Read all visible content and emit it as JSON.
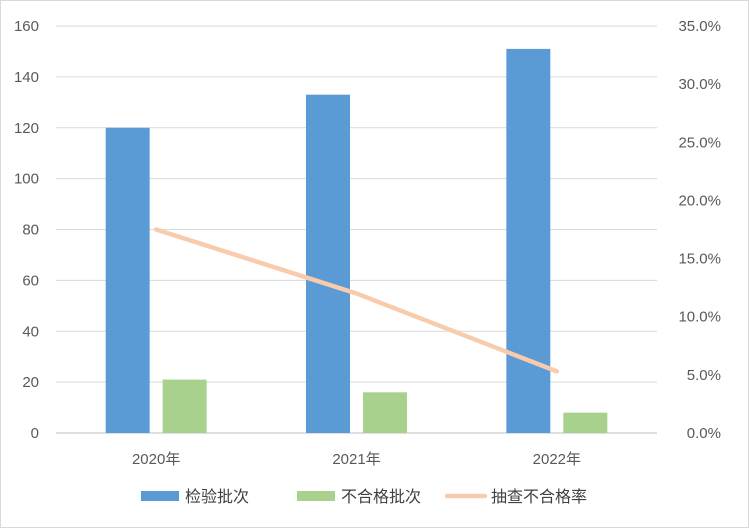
{
  "chart_data": {
    "type": "bar",
    "categories": [
      "2020年",
      "2021年",
      "2022年"
    ],
    "series": [
      {
        "name": "检验批次",
        "kind": "bar",
        "axis": "left",
        "color": "#5b9bd5",
        "values": [
          120,
          133,
          151
        ]
      },
      {
        "name": "不合格批次",
        "kind": "bar",
        "axis": "left",
        "color": "#a9d18e",
        "values": [
          21,
          16,
          8
        ]
      },
      {
        "name": "抽查不合格率",
        "kind": "line",
        "axis": "right",
        "color": "#f8cbad",
        "values": [
          0.175,
          0.12,
          0.053
        ]
      }
    ],
    "ylim": [
      0,
      160
    ],
    "y_ticks": [
      0,
      20,
      40,
      60,
      80,
      100,
      120,
      140,
      160
    ],
    "y2lim": [
      0,
      0.35
    ],
    "y2_ticks": [
      "0.0%",
      "5.0%",
      "10.0%",
      "15.0%",
      "20.0%",
      "25.0%",
      "30.0%",
      "35.0%"
    ],
    "grid": true,
    "legend_position": "bottom",
    "title": "",
    "xlabel": "",
    "ylabel": ""
  }
}
